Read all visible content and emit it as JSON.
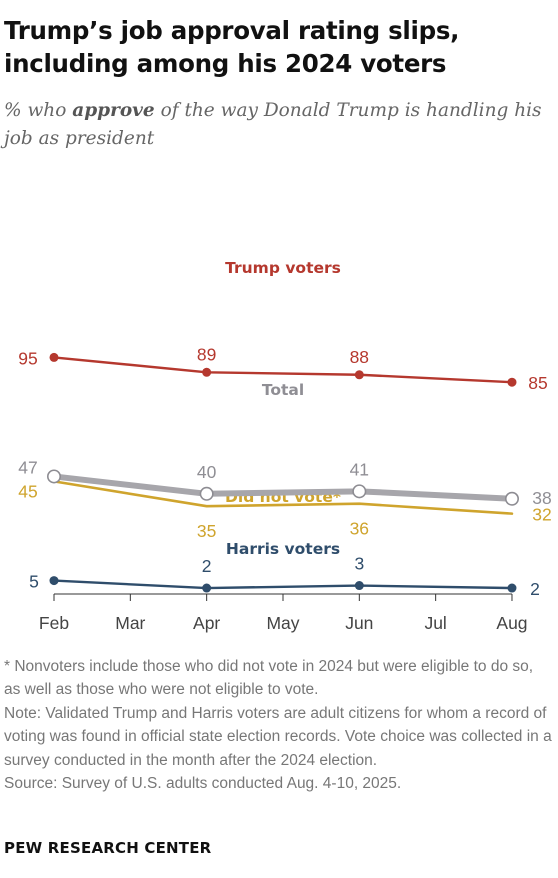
{
  "title": "Trump’s job approval rating slips, including among his 2024 voters",
  "subtitle": {
    "prefix": "% who ",
    "emphasis": "approve",
    "suffix": " of the way Donald Trump is handling his job as president"
  },
  "chart_data": {
    "type": "line",
    "x": [
      "Feb",
      "Mar",
      "Apr",
      "May",
      "Jun",
      "Jul",
      "Aug"
    ],
    "ylim": [
      0,
      100
    ],
    "grid": false,
    "series": [
      {
        "name": "Trump voters",
        "color": "#b5382e",
        "x": [
          "Feb",
          "Apr",
          "Jun",
          "Aug"
        ],
        "values": [
          95,
          89,
          88,
          85
        ],
        "labels": [
          "95",
          "89",
          "88",
          "85"
        ]
      },
      {
        "name": "Total",
        "color": "#a7a6ab",
        "x": [
          "Feb",
          "Apr",
          "Jun",
          "Aug"
        ],
        "values": [
          47,
          40,
          41,
          38
        ],
        "labels": [
          "47",
          "40",
          "41",
          "38"
        ]
      },
      {
        "name": "Did not vote*",
        "color": "#cfa42d",
        "x": [
          "Feb",
          "Apr",
          "Jun",
          "Aug"
        ],
        "values": [
          45,
          35,
          36,
          32
        ],
        "labels": [
          "45",
          "35",
          "36",
          "32"
        ]
      },
      {
        "name": "Harris voters",
        "color": "#2f4d6b",
        "x": [
          "Feb",
          "Apr",
          "Jun",
          "Aug"
        ],
        "values": [
          5,
          2,
          3,
          2
        ],
        "labels": [
          "5",
          "2",
          "3",
          "2"
        ]
      }
    ]
  },
  "notes": [
    "* Nonvoters include those who did not vote in 2024 but were eligible to do so, as well as those who were not eligible to vote.",
    "Note: Validated Trump and Harris voters are adult citizens for whom a record of voting was found in official state election records. Vote choice was collected in a survey conducted in the month after the 2024 election.",
    "Source: Survey of U.S. adults conducted Aug. 4-10, 2025."
  ],
  "brand": "PEW RESEARCH CENTER"
}
